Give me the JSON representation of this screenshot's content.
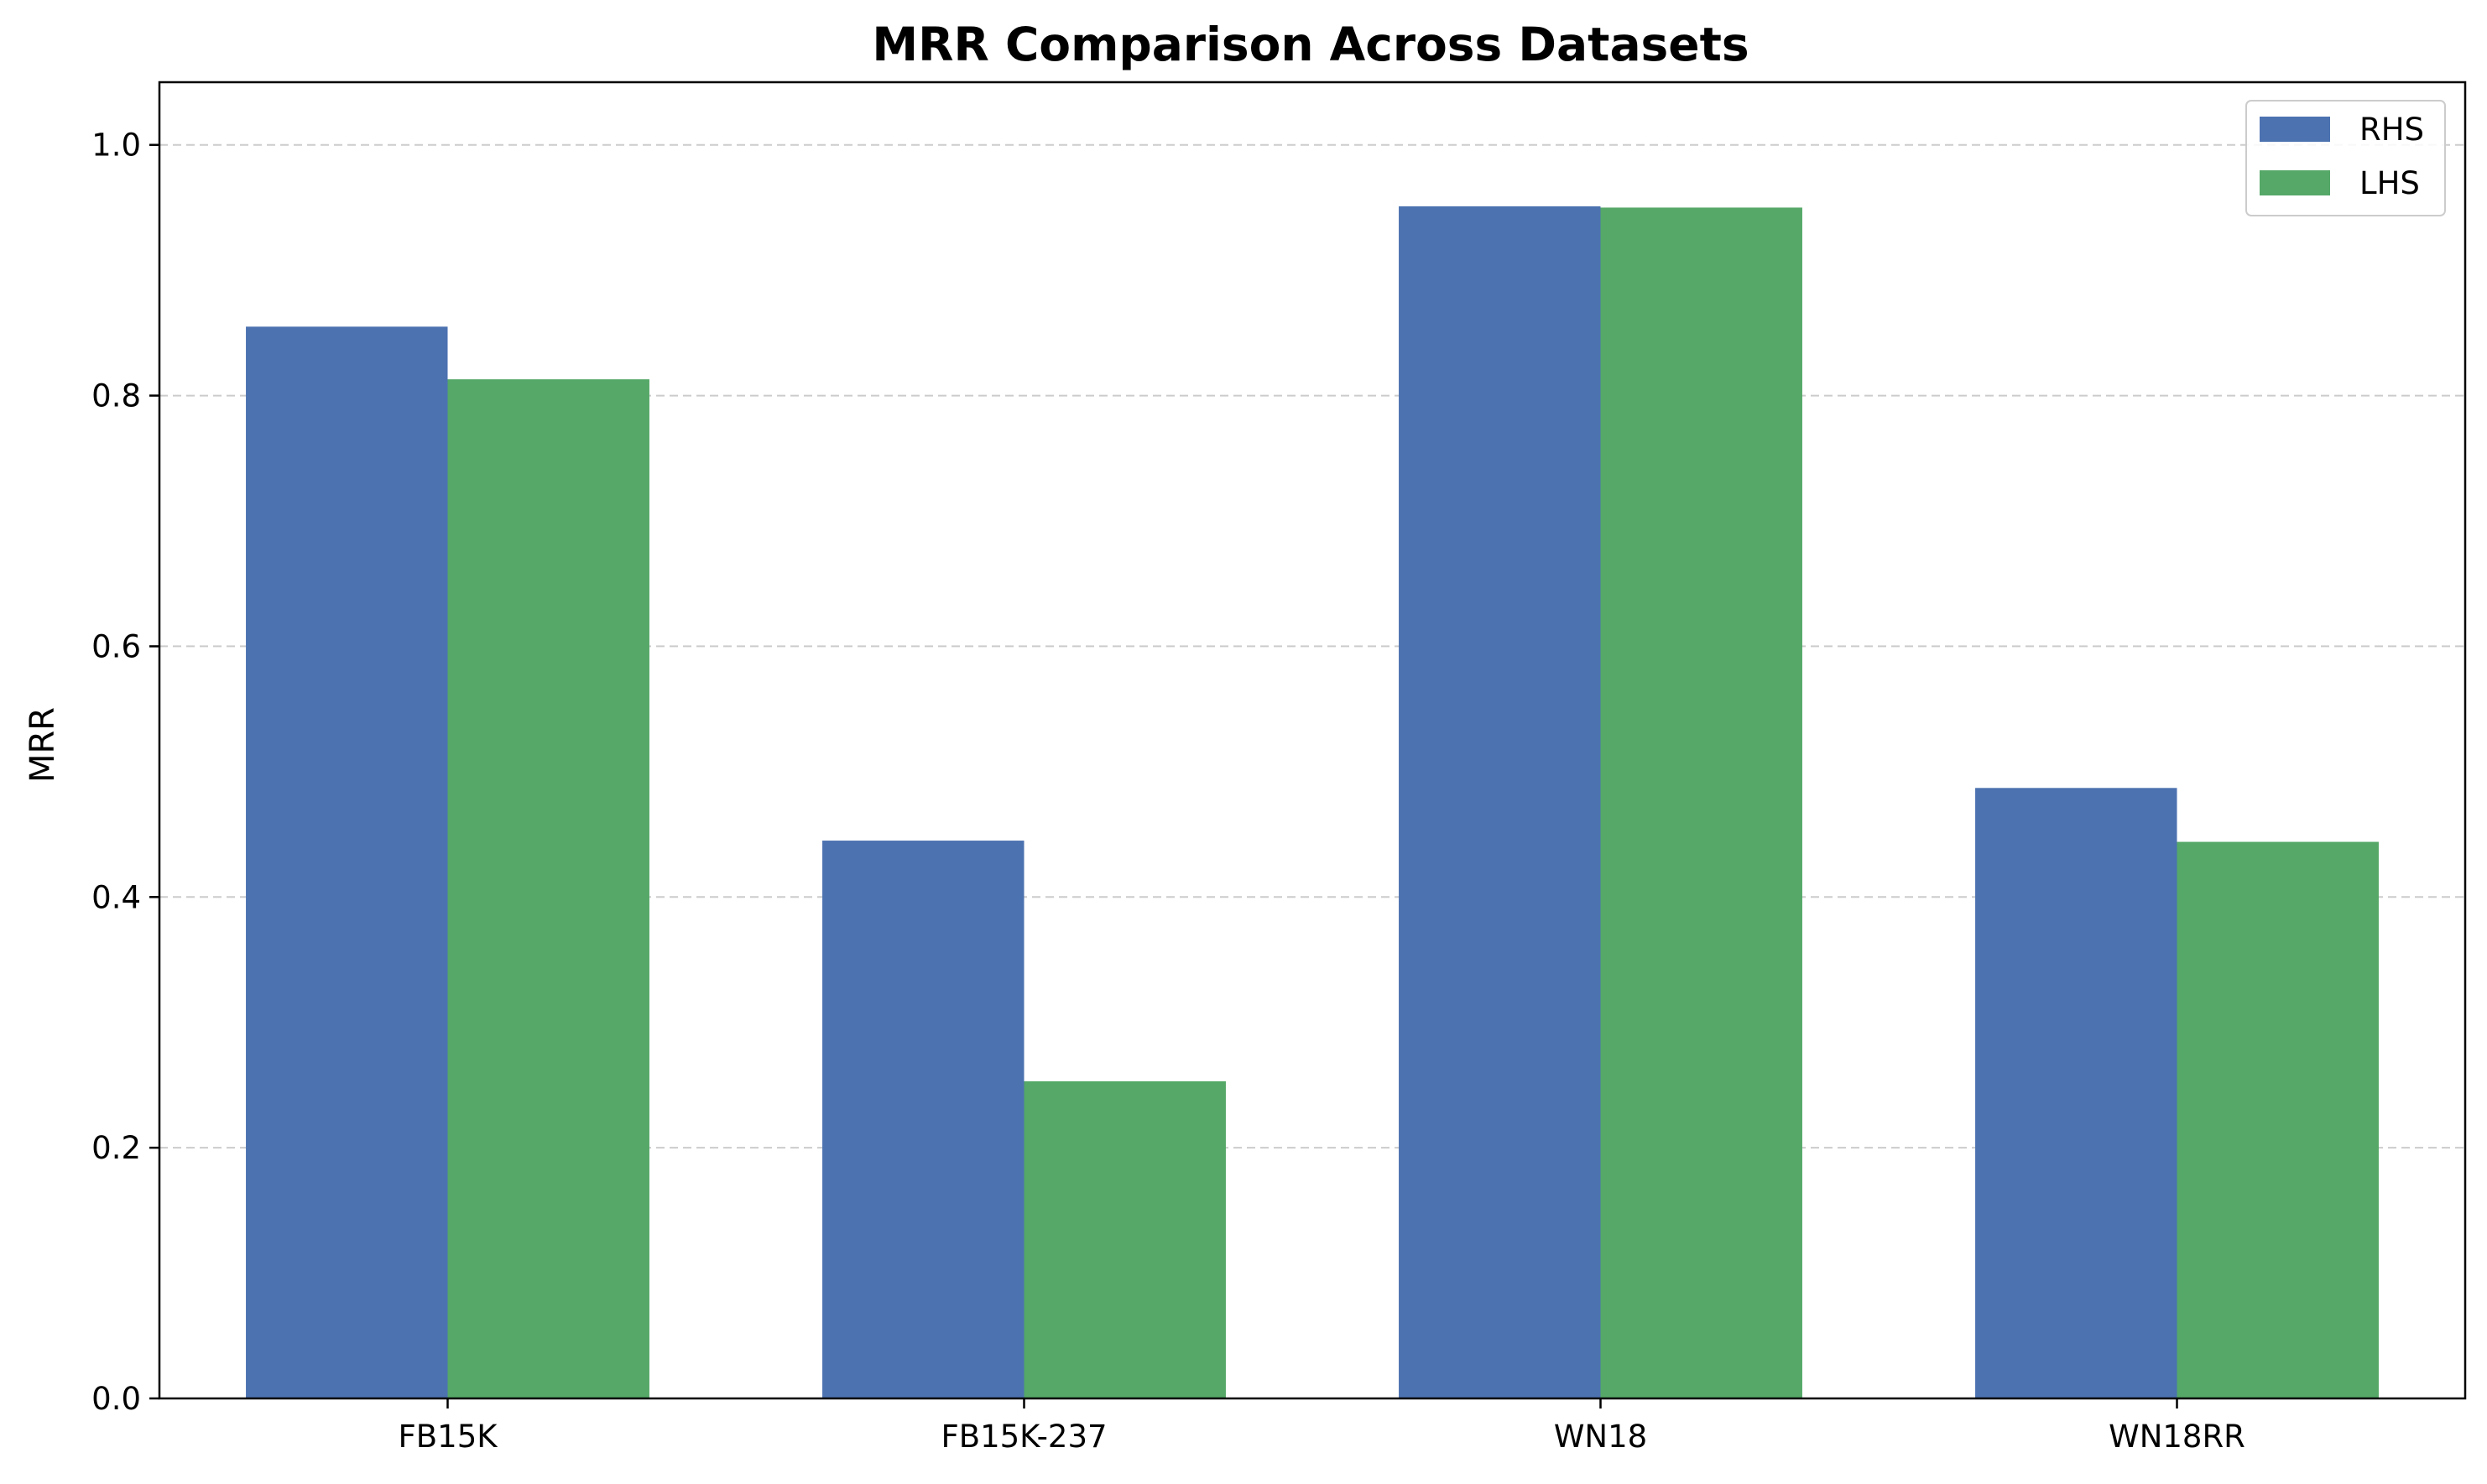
{
  "chart_data": {
    "type": "bar",
    "title": "MRR Comparison Across Datasets",
    "xlabel": "",
    "ylabel": "MRR",
    "categories": [
      "FB15K",
      "FB15K-237",
      "WN18",
      "WN18RR"
    ],
    "series": [
      {
        "name": "RHS",
        "color": "#4c72b0",
        "values": [
          0.855,
          0.445,
          0.951,
          0.487
        ]
      },
      {
        "name": "LHS",
        "color": "#55a868",
        "values": [
          0.813,
          0.253,
          0.95,
          0.444
        ]
      }
    ],
    "ylim": [
      0,
      1.05
    ],
    "yticks": [
      0.0,
      0.2,
      0.4,
      0.6,
      0.8,
      1.0
    ],
    "ytick_labels": [
      "0.0",
      "0.2",
      "0.4",
      "0.6",
      "0.8",
      "1.0"
    ],
    "grid": {
      "axis": "y",
      "style": "dashed",
      "color": "#cccccc"
    },
    "legend": {
      "position": "upper right"
    }
  }
}
